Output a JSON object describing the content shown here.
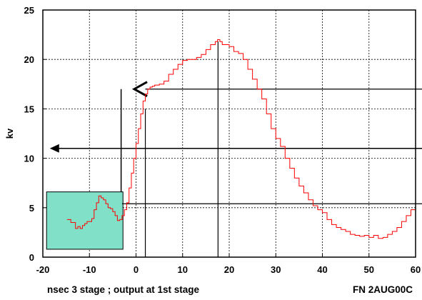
{
  "chart_data": {
    "type": "line",
    "ylabel": "kv",
    "xlabel": "nsec 3 stage ; output at 1st stage",
    "footer_right": "FN 2AUG00C",
    "xlim": [
      -20,
      60
    ],
    "ylim": [
      0,
      25
    ],
    "x_ticks": [
      -20,
      -10,
      0,
      10,
      20,
      30,
      40,
      50,
      60
    ],
    "y_ticks": [
      0,
      5,
      10,
      15,
      20,
      25
    ],
    "grid": true,
    "colors": {
      "trace": "#ff0000",
      "box_fill": "#80e0c8",
      "frame": "#000000"
    },
    "series": [
      {
        "x": [
          -14.8,
          -14,
          -13,
          -12.5,
          -12,
          -11.5,
          -11,
          -10.5,
          -10,
          -9.5,
          -9,
          -8.5,
          -8,
          -7.5,
          -7,
          -6.5,
          -6,
          -5.5,
          -5,
          -4.5,
          -4,
          -3.5,
          -3,
          -2.5,
          -2,
          -1.5,
          -1,
          -0.5,
          0,
          0.5,
          1,
          1.5,
          2,
          2.5,
          3,
          3.5,
          4,
          5,
          6,
          7,
          8,
          9,
          10,
          11,
          12,
          13,
          14,
          15,
          16,
          17,
          17.5,
          18,
          18.5,
          19,
          20,
          21,
          22,
          23,
          24,
          25,
          26,
          27,
          28,
          29,
          30,
          31,
          32,
          33,
          34,
          35,
          36,
          37,
          38,
          39,
          40,
          41,
          42,
          43,
          44,
          45,
          46,
          47,
          48,
          49,
          50,
          51,
          52,
          53,
          54,
          55,
          56,
          57,
          58,
          59,
          60
        ],
        "y": [
          3.8,
          3.5,
          2.9,
          3.1,
          2.9,
          3.2,
          3.4,
          3.6,
          3.6,
          3.9,
          4.8,
          5.5,
          6.2,
          6.0,
          5.8,
          5.4,
          5.0,
          4.9,
          4.6,
          4.2,
          3.7,
          3.8,
          4.2,
          4.8,
          5.5,
          7.0,
          8.5,
          10.0,
          11.5,
          13.0,
          14.5,
          15.8,
          16.5,
          17.0,
          17.2,
          17.3,
          17.4,
          17.5,
          17.8,
          18.5,
          19.0,
          19.5,
          19.9,
          20.0,
          20.0,
          20.2,
          20.5,
          21.0,
          21.5,
          21.8,
          22.0,
          21.8,
          21.5,
          21.5,
          21.3,
          20.8,
          20.6,
          20.0,
          19.0,
          18.0,
          17.0,
          16.0,
          14.5,
          13.0,
          12.0,
          11.2,
          10.0,
          9.0,
          8.0,
          7.2,
          6.5,
          5.8,
          5.2,
          4.8,
          4.5,
          3.8,
          3.3,
          3.0,
          2.8,
          2.6,
          2.3,
          2.2,
          2.1,
          2.2,
          2.0,
          2.2,
          1.9,
          2.0,
          2.3,
          2.6,
          3.0,
          3.6,
          4.2,
          4.8,
          5.5
        ]
      }
    ],
    "annotations": {
      "box_region": {
        "x": [
          -19.2,
          -2.8
        ],
        "y": [
          0.8,
          6.6
        ]
      },
      "arrow_11": {
        "y": 11,
        "x_tip": -18.5
      },
      "bracket_17": {
        "y": 17,
        "x_left": -3.2,
        "x_tip": 1
      },
      "hline_5_4": {
        "y": 5.4,
        "x_from": -3
      },
      "hline_17": {
        "y": 17,
        "x_from": 2
      },
      "vline_2": {
        "x": 2,
        "y_top": 15
      },
      "vline_17_6": {
        "x": 17.6,
        "y_top": 21.8
      }
    }
  }
}
